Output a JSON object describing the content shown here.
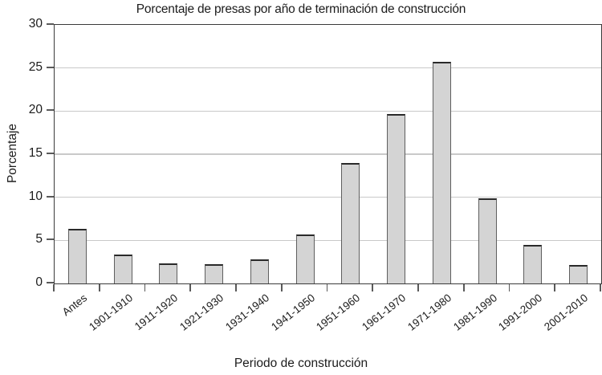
{
  "chart_data": {
    "type": "bar",
    "title": "Porcentaje de presas por año de terminación de construcción",
    "xlabel": "Periodo de construcción",
    "ylabel": "Porcentaje",
    "categories": [
      "Antes",
      "1901-1910",
      "1911-1920",
      "1921-1930",
      "1931-1940",
      "1941-1950",
      "1951-1960",
      "1961-1970",
      "1971-1980",
      "1981-1990",
      "1991-2000",
      "2001-2010"
    ],
    "values": [
      6.3,
      3.4,
      2.3,
      2.2,
      2.8,
      5.7,
      14.0,
      19.7,
      25.7,
      9.9,
      4.5,
      2.1
    ],
    "ylim": [
      0,
      30
    ],
    "yticks": [
      0,
      5,
      10,
      15,
      20,
      25,
      30
    ],
    "grid": true,
    "legend": "none",
    "colors": {
      "bar_fill": "#d4d4d4",
      "bar_border_side": "#5f5f5f",
      "bar_border_top": "#2a2a2a",
      "axis": "#3b3b3b",
      "tick": "#5a5a5a",
      "gridline": "#c9c9c9",
      "text": "#1c1c1c",
      "background": "#ffffff"
    }
  }
}
